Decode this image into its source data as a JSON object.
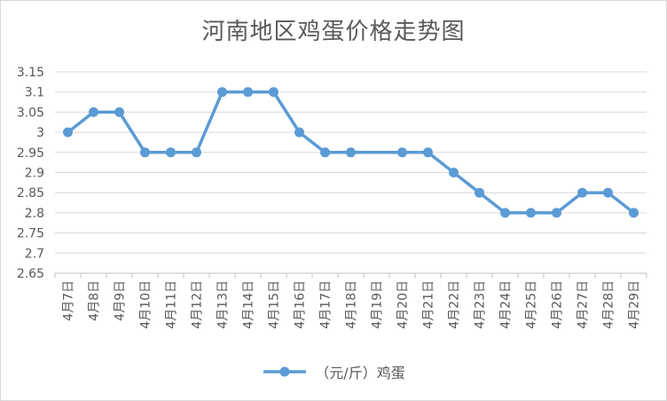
{
  "chart_data": {
    "type": "line",
    "title": "河南地区鸡蛋价格走势图",
    "xlabel": "",
    "ylabel": "",
    "categories": [
      "4月7日",
      "4月8日",
      "4月9日",
      "4月10日",
      "4月11日",
      "4月12日",
      "4月13日",
      "4月14日",
      "4月15日",
      "4月16日",
      "4月17日",
      "4月18日",
      "4月19日",
      "4月20日",
      "4月21日",
      "4月22日",
      "4月23日",
      "4月24日",
      "4月25日",
      "4月26日",
      "4月27日",
      "4月28日",
      "4月29日"
    ],
    "series": [
      {
        "name": "（元/斤）鸡蛋",
        "values": [
          3.0,
          3.05,
          3.05,
          2.95,
          2.95,
          2.95,
          3.1,
          3.1,
          3.1,
          3.0,
          2.95,
          2.95,
          null,
          2.95,
          2.95,
          2.9,
          2.85,
          2.8,
          2.8,
          2.8,
          2.85,
          2.85,
          2.8
        ]
      }
    ],
    "ylim": [
      2.65,
      3.15
    ],
    "yticks": [
      "3.15",
      "3.1",
      "3.05",
      "3",
      "2.95",
      "2.9",
      "2.85",
      "2.8",
      "2.75",
      "2.7",
      "2.65"
    ],
    "grid": true,
    "legend": "bottom",
    "colors": {
      "line": "#5b9bd5",
      "grid": "#d9d9d9",
      "axis": "#bfbfbf",
      "text": "#595959"
    }
  }
}
